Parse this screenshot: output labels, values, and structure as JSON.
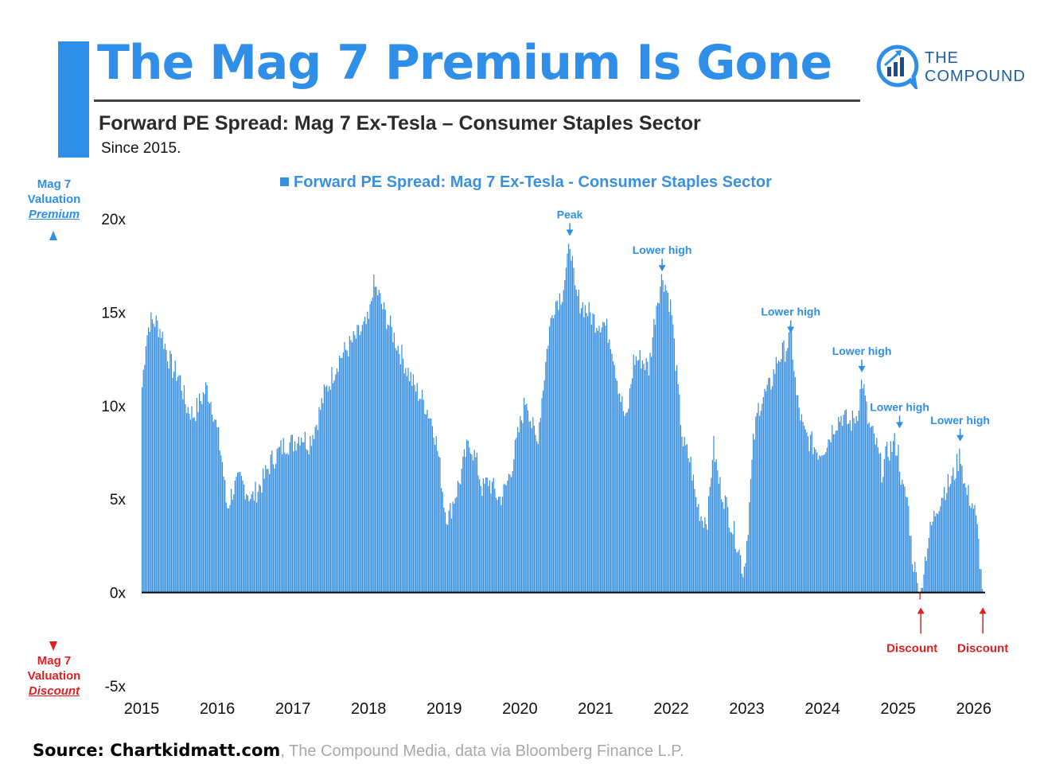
{
  "header": {
    "title": "The Mag 7 Premium Is Gone",
    "subtitle": "Forward PE Spread: Mag 7 Ex-Tesla – Consumer Staples Sector",
    "since": "Since 2015."
  },
  "logo": {
    "line1": "THE",
    "line2": "COMPOUND"
  },
  "side_labels": {
    "top": [
      "Mag 7",
      "Valuation",
      "Premium"
    ],
    "bottom": [
      "Mag 7",
      "Valuation",
      "Discount"
    ]
  },
  "colors": {
    "accent": "#2f8fe8",
    "bars": "#3a90e0",
    "discount": "#e02020",
    "axis": "#000000"
  },
  "source": {
    "bold": "Source: Chartkidmatt.com",
    "rest": ", The Compound Media, data via Bloomberg Finance L.P."
  },
  "chart_data": {
    "type": "bar",
    "title": "Forward PE Spread: Mag 7 Ex-Tesla - Consumer Staples Sector",
    "legend": "Forward PE Spread: Mag 7 Ex-Tesla - Consumer Staples Sector",
    "legend_position": "top-center",
    "ylim": [
      -5,
      20
    ],
    "xlim": [
      2015.0,
      2026.15
    ],
    "yticks": [
      {
        "value": 20,
        "label": "20x"
      },
      {
        "value": 15,
        "label": "15x"
      },
      {
        "value": 10,
        "label": "10x"
      },
      {
        "value": 5,
        "label": "5x"
      },
      {
        "value": 0,
        "label": "0x"
      },
      {
        "value": -5,
        "label": "-5x"
      }
    ],
    "xticks": [
      "2015",
      "2016",
      "2017",
      "2018",
      "2019",
      "2020",
      "2021",
      "2022",
      "2023",
      "2024",
      "2025",
      "2026"
    ],
    "series": [
      {
        "name": "Forward PE Spread: Mag 7 Ex-Tesla - Consumer Staples Sector",
        "points": [
          [
            2015.0,
            11.0
          ],
          [
            2015.05,
            13.5
          ],
          [
            2015.1,
            14.5
          ],
          [
            2015.18,
            14.5
          ],
          [
            2015.25,
            14.0
          ],
          [
            2015.32,
            13.0
          ],
          [
            2015.4,
            12.0
          ],
          [
            2015.5,
            11.5
          ],
          [
            2015.58,
            10.0
          ],
          [
            2015.68,
            9.5
          ],
          [
            2015.8,
            10.5
          ],
          [
            2015.85,
            11.0
          ],
          [
            2015.93,
            10.0
          ],
          [
            2016.0,
            8.5
          ],
          [
            2016.06,
            7.0
          ],
          [
            2016.12,
            4.5
          ],
          [
            2016.2,
            5.5
          ],
          [
            2016.3,
            6.0
          ],
          [
            2016.38,
            5.5
          ],
          [
            2016.45,
            5.0
          ],
          [
            2016.52,
            5.5
          ],
          [
            2016.6,
            6.0
          ],
          [
            2016.7,
            7.0
          ],
          [
            2016.8,
            7.5
          ],
          [
            2016.9,
            8.0
          ],
          [
            2017.0,
            8.0
          ],
          [
            2017.1,
            8.5
          ],
          [
            2017.2,
            8.0
          ],
          [
            2017.3,
            9.0
          ],
          [
            2017.4,
            10.5
          ],
          [
            2017.5,
            11.5
          ],
          [
            2017.6,
            12.5
          ],
          [
            2017.7,
            13.0
          ],
          [
            2017.8,
            13.5
          ],
          [
            2017.9,
            14.0
          ],
          [
            2018.0,
            14.5
          ],
          [
            2018.05,
            16.5
          ],
          [
            2018.12,
            16.0
          ],
          [
            2018.2,
            15.0
          ],
          [
            2018.3,
            14.0
          ],
          [
            2018.4,
            13.0
          ],
          [
            2018.5,
            12.0
          ],
          [
            2018.6,
            11.0
          ],
          [
            2018.68,
            10.5
          ],
          [
            2018.75,
            10.0
          ],
          [
            2018.85,
            9.0
          ],
          [
            2018.93,
            7.0
          ],
          [
            2019.0,
            4.5
          ],
          [
            2019.05,
            4.0
          ],
          [
            2019.12,
            5.0
          ],
          [
            2019.2,
            6.0
          ],
          [
            2019.28,
            7.5
          ],
          [
            2019.34,
            8.0
          ],
          [
            2019.42,
            7.0
          ],
          [
            2019.5,
            5.5
          ],
          [
            2019.58,
            6.0
          ],
          [
            2019.65,
            5.5
          ],
          [
            2019.72,
            5.0
          ],
          [
            2019.8,
            5.5
          ],
          [
            2019.9,
            7.0
          ],
          [
            2020.0,
            9.0
          ],
          [
            2020.08,
            10.5
          ],
          [
            2020.15,
            9.0
          ],
          [
            2020.22,
            8.0
          ],
          [
            2020.3,
            11.0
          ],
          [
            2020.38,
            14.0
          ],
          [
            2020.45,
            15.5
          ],
          [
            2020.55,
            16.0
          ],
          [
            2020.62,
            17.5
          ],
          [
            2020.66,
            19.0
          ],
          [
            2020.72,
            16.0
          ],
          [
            2020.8,
            15.5
          ],
          [
            2020.9,
            15.0
          ],
          [
            2021.0,
            14.5
          ],
          [
            2021.1,
            14.5
          ],
          [
            2021.2,
            13.5
          ],
          [
            2021.3,
            11.0
          ],
          [
            2021.4,
            9.0
          ],
          [
            2021.5,
            12.5
          ],
          [
            2021.6,
            12.5
          ],
          [
            2021.7,
            12.0
          ],
          [
            2021.8,
            15.5
          ],
          [
            2021.88,
            17.0
          ],
          [
            2021.95,
            16.0
          ],
          [
            2022.0,
            15.0
          ],
          [
            2022.08,
            11.0
          ],
          [
            2022.15,
            8.0
          ],
          [
            2022.25,
            7.0
          ],
          [
            2022.32,
            5.0
          ],
          [
            2022.4,
            4.0
          ],
          [
            2022.48,
            4.0
          ],
          [
            2022.55,
            8.0
          ],
          [
            2022.62,
            6.0
          ],
          [
            2022.7,
            5.0
          ],
          [
            2022.8,
            3.5
          ],
          [
            2022.88,
            2.5
          ],
          [
            2022.95,
            1.0
          ],
          [
            2023.0,
            3.0
          ],
          [
            2023.08,
            8.0
          ],
          [
            2023.15,
            10.0
          ],
          [
            2023.22,
            10.5
          ],
          [
            2023.3,
            11.0
          ],
          [
            2023.4,
            12.5
          ],
          [
            2023.5,
            13.0
          ],
          [
            2023.58,
            13.8
          ],
          [
            2023.65,
            10.5
          ],
          [
            2023.75,
            8.5
          ],
          [
            2023.85,
            8.0
          ],
          [
            2023.95,
            7.5
          ],
          [
            2024.05,
            8.0
          ],
          [
            2024.15,
            9.0
          ],
          [
            2024.25,
            9.5
          ],
          [
            2024.35,
            9.0
          ],
          [
            2024.45,
            9.5
          ],
          [
            2024.52,
            11.5
          ],
          [
            2024.6,
            9.0
          ],
          [
            2024.7,
            8.0
          ],
          [
            2024.78,
            6.5
          ],
          [
            2024.85,
            7.5
          ],
          [
            2024.95,
            8.0
          ],
          [
            2025.0,
            7.5
          ],
          [
            2025.05,
            5.5
          ],
          [
            2025.12,
            5.0
          ],
          [
            2025.18,
            2.0
          ],
          [
            2025.25,
            0.5
          ],
          [
            2025.28,
            -0.5
          ],
          [
            2025.32,
            1.0
          ],
          [
            2025.4,
            3.0
          ],
          [
            2025.5,
            4.5
          ],
          [
            2025.6,
            5.5
          ],
          [
            2025.7,
            6.0
          ],
          [
            2025.75,
            6.5
          ],
          [
            2025.82,
            7.5
          ],
          [
            2025.88,
            5.5
          ],
          [
            2025.95,
            5.0
          ],
          [
            2026.0,
            4.5
          ],
          [
            2026.05,
            3.0
          ],
          [
            2026.1,
            0.5
          ],
          [
            2026.12,
            -0.3
          ]
        ]
      }
    ],
    "annotations": [
      {
        "text": "Peak",
        "x": 2020.66,
        "y": 19.0,
        "type": "high"
      },
      {
        "text": "Lower high",
        "x": 2021.88,
        "y": 17.1,
        "type": "high"
      },
      {
        "text": "Lower high",
        "x": 2023.58,
        "y": 13.8,
        "type": "high"
      },
      {
        "text": "Lower high",
        "x": 2024.52,
        "y": 11.7,
        "type": "high"
      },
      {
        "text": "Lower high",
        "x": 2025.02,
        "y": 8.7,
        "type": "high"
      },
      {
        "text": "Lower high",
        "x": 2025.82,
        "y": 8.0,
        "type": "high"
      },
      {
        "text": "Discount",
        "x": 2025.3,
        "y": -0.6,
        "type": "discount"
      },
      {
        "text": "Discount",
        "x": 2026.12,
        "y": -0.3,
        "type": "discount"
      }
    ]
  }
}
